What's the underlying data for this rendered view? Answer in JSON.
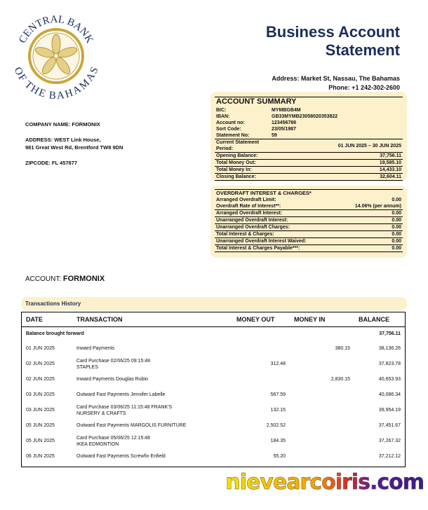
{
  "logo": {
    "text": "CENTRAL BANK OF THE BAHAMAS",
    "colors": {
      "ring": "#c9a73a",
      "text": "#1b2d5c"
    }
  },
  "header": {
    "title_line1": "Business Account",
    "title_line2": "Statement",
    "address": "Address: Market St, Nassau, The Bahamas",
    "phone": "Phone: +1 242-302-2600"
  },
  "company": {
    "name": "COMPANY NAME: FORMONIX",
    "address1": "ADDRESS: WEST Link House,",
    "address2": "981 Great West Rd, Brentford TW8 9DN",
    "zipcode": "ZIPCODE: FL 457877"
  },
  "summary": {
    "title": "ACCOUNT SUMMARY",
    "info": [
      [
        "BIC:",
        "MYMBGB4M"
      ],
      [
        "IBAN:",
        "GB33MYMB23058020353822"
      ],
      [
        "Account no:",
        "123456789"
      ],
      [
        "Sort Code:",
        "23/05/1987"
      ],
      [
        "Statement No:",
        "59"
      ]
    ],
    "rows": [
      [
        "Current Statement Period:",
        "01 JUN 2025 – 30 JUN 2025"
      ],
      [
        "Opening Balance:",
        "37,756.11"
      ],
      [
        "Total Money Out:",
        "19,585.10"
      ],
      [
        "Total Money In:",
        "14,433.10"
      ],
      [
        "Closing Balance:",
        "32,604.11"
      ]
    ]
  },
  "overdraft": {
    "title": "OVERDRAFT INTEREST & CHARGES*",
    "top": [
      [
        "Arranged Overdraft Limit:",
        "0.00"
      ],
      [
        "Overdraft Rate of Interest**:",
        "14.06% (per annum)"
      ]
    ],
    "rows": [
      [
        "Arranged Overdraft Interest:",
        "0.00"
      ],
      [
        "Unarranged Overdraft Interest:",
        "0.00"
      ],
      [
        "Unarranged Overdraft Charges:",
        "0.00"
      ],
      [
        "Total Interest & Charges:",
        "0.00"
      ],
      [
        "Unarranged Overdraft Interest Waived:",
        "0.00"
      ],
      [
        "Total Interest & Charges Payable***:",
        "0.00"
      ]
    ]
  },
  "account": {
    "label": "ACCOUNT:",
    "name": "FORMONIX"
  },
  "transactions": {
    "section_title": "Transactions History",
    "headers": [
      "DATE",
      "TRANSACTION",
      "MONEY OUT",
      "MONEY IN",
      "BALANCE"
    ],
    "brought_forward": {
      "label": "Balance brought forward",
      "balance": "37,756.11"
    },
    "rows": [
      {
        "date": "01 JUN 2025",
        "desc": [
          "Inward Payments"
        ],
        "out": "",
        "in": "380.15",
        "bal": "38,136.26"
      },
      {
        "date": "02 JUN 2025",
        "desc": [
          "Card Purchase 02/06/25 09:15:48",
          "STAPLES"
        ],
        "out": "312.48",
        "in": "",
        "bal": "37,823.78"
      },
      {
        "date": "02 JUN 2025",
        "desc": [
          "Inward Payments Douglas Rubio"
        ],
        "out": "",
        "in": "2,830.15",
        "bal": "40,653.93"
      },
      {
        "date": "03 JUN 2025",
        "desc": [
          "Outward Fast Payments Jennifer Labelle"
        ],
        "out": "567.59",
        "in": "",
        "bal": "40,086.34"
      },
      {
        "date": "03 JUN 2025",
        "desc": [
          "Card Purchase 03/06/25 11:15:48 FRANK'S",
          "NURSERY & CRAFTS"
        ],
        "out": "132.15",
        "in": "",
        "bal": "39,954.19"
      },
      {
        "date": "05 JUN 2025",
        "desc": [
          "Outward Fast Payments MARGOLIS FURNITURE"
        ],
        "out": "2,502.52",
        "in": "",
        "bal": "37,451.67"
      },
      {
        "date": "05 JUN 2025",
        "desc": [
          "Card Purchase 05/06/25 12:15:48",
          "IKEA EDMONTION"
        ],
        "out": "184.35",
        "in": "",
        "bal": "37,267.32"
      },
      {
        "date": "06 JUN 2025",
        "desc": [
          "Outward Fast Payments Screwfix Enfield"
        ],
        "out": "55.20",
        "in": "",
        "bal": "37,212.12"
      }
    ]
  },
  "watermark": "nievearcoiris.com"
}
